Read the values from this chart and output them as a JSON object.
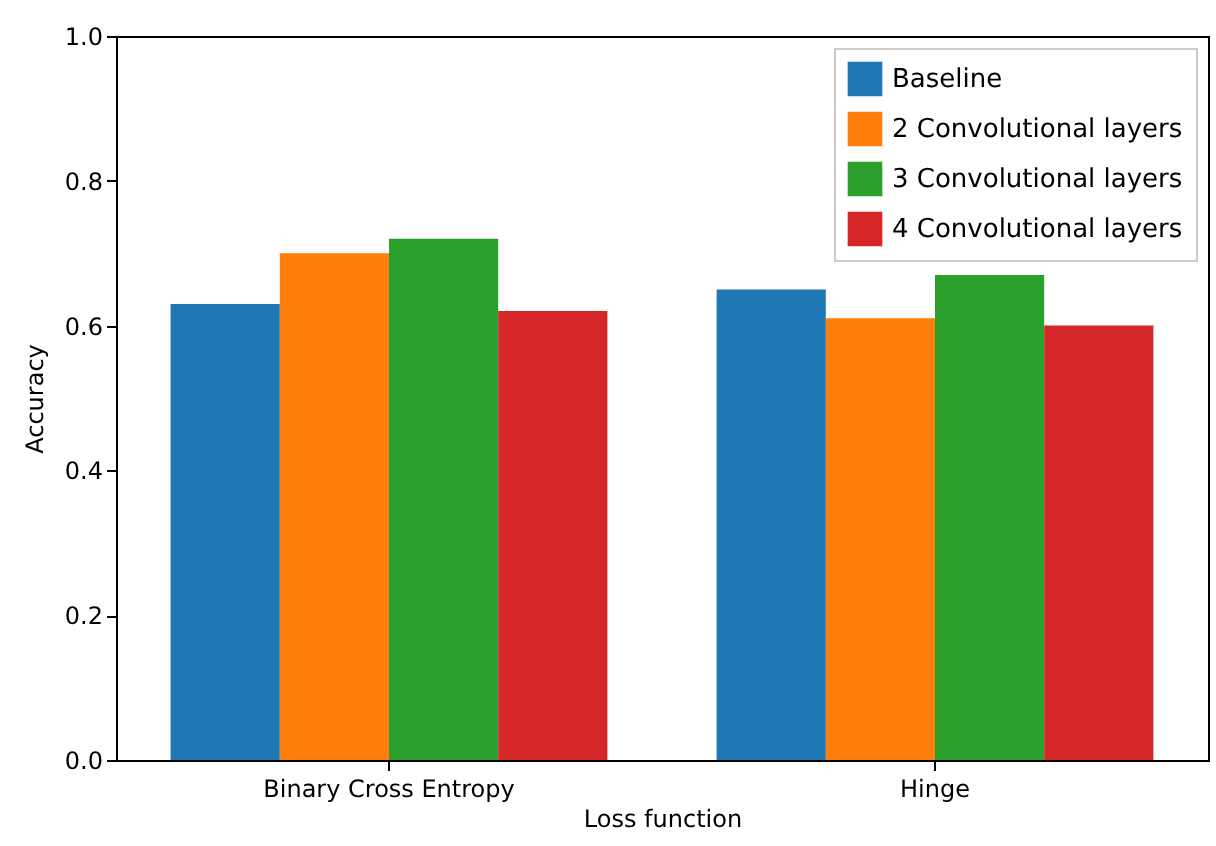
{
  "chart_data": {
    "type": "bar",
    "xlabel": "Loss function",
    "ylabel": "Accuracy",
    "categories": [
      "Binary Cross Entropy",
      "Hinge"
    ],
    "series": [
      {
        "name": "Baseline",
        "color": "#1f77b4",
        "values": [
          0.63,
          0.65
        ]
      },
      {
        "name": "2 Convolutional layers",
        "color": "#ff7f0e",
        "values": [
          0.7,
          0.61
        ]
      },
      {
        "name": "3 Convolutional layers",
        "color": "#2ca02c",
        "values": [
          0.72,
          0.67
        ]
      },
      {
        "name": "4 Convolutional layers",
        "color": "#d62728",
        "values": [
          0.62,
          0.6
        ]
      }
    ],
    "ylim": [
      0,
      1
    ],
    "yticks": [
      {
        "value": 0,
        "label": "0.0"
      },
      0.2,
      0.4,
      0.6,
      0.8,
      {
        "value": 1,
        "label": "1.0"
      }
    ],
    "grid": false,
    "legend": "top right"
  }
}
